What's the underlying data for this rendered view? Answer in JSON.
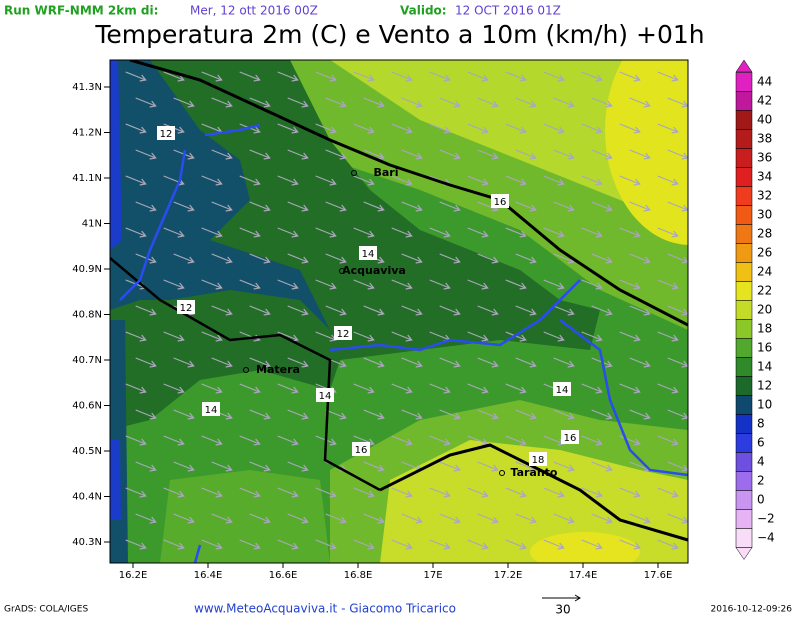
{
  "header": {
    "run_label": "Run WRF-NMM 2km di:",
    "run_date": "Mer, 12 ott 2016 00Z",
    "valid_label": "Valido:",
    "valid_date": "12 OCT 2016 01Z"
  },
  "title": "Temperatura 2m (C) e Vento a 10m (km/h) +01h",
  "map": {
    "lat_labels": [
      "41.3N",
      "41.2N",
      "41.1N",
      "41N",
      "40.9N",
      "40.8N",
      "40.7N",
      "40.6N",
      "40.5N",
      "40.4N",
      "40.3N"
    ],
    "lon_labels": [
      "16.2E",
      "16.4E",
      "16.6E",
      "16.8E",
      "17E",
      "17.2E",
      "17.4E",
      "17.6E"
    ],
    "cities": [
      "Bari",
      "Acquaviva",
      "Matera",
      "Taranto"
    ],
    "contour_labels": [
      "12",
      "16",
      "14",
      "12",
      "12",
      "14",
      "14",
      "14",
      "16",
      "16",
      "18"
    ]
  },
  "colorbar": {
    "labels": [
      "44",
      "42",
      "40",
      "38",
      "36",
      "34",
      "32",
      "30",
      "28",
      "26",
      "24",
      "22",
      "20",
      "18",
      "16",
      "14",
      "12",
      "10",
      "8",
      "6",
      "4",
      "2",
      "0",
      "−2",
      "−4"
    ],
    "colors": [
      "#e020c0",
      "#c0189c",
      "#a01818",
      "#b41c1c",
      "#c81e1e",
      "#e02020",
      "#f03c1e",
      "#f05a14",
      "#f07814",
      "#f09a14",
      "#f0c014",
      "#e6e41e",
      "#c4dc28",
      "#8cc828",
      "#50a82c",
      "#2f8a2a",
      "#1c6a2a",
      "#0f4a6e",
      "#1432c8",
      "#2c3ce0",
      "#6e50e0",
      "#9c6cec",
      "#c896f0",
      "#e6b4f4",
      "#f8dcf8"
    ]
  },
  "footer": {
    "software": "GrADS: COLA/IGES",
    "credit": "www.MeteoAcquaviva.it - Giacomo Tricarico",
    "wind_scale": "30",
    "timestamp": "2016-10-12-09:26"
  }
}
